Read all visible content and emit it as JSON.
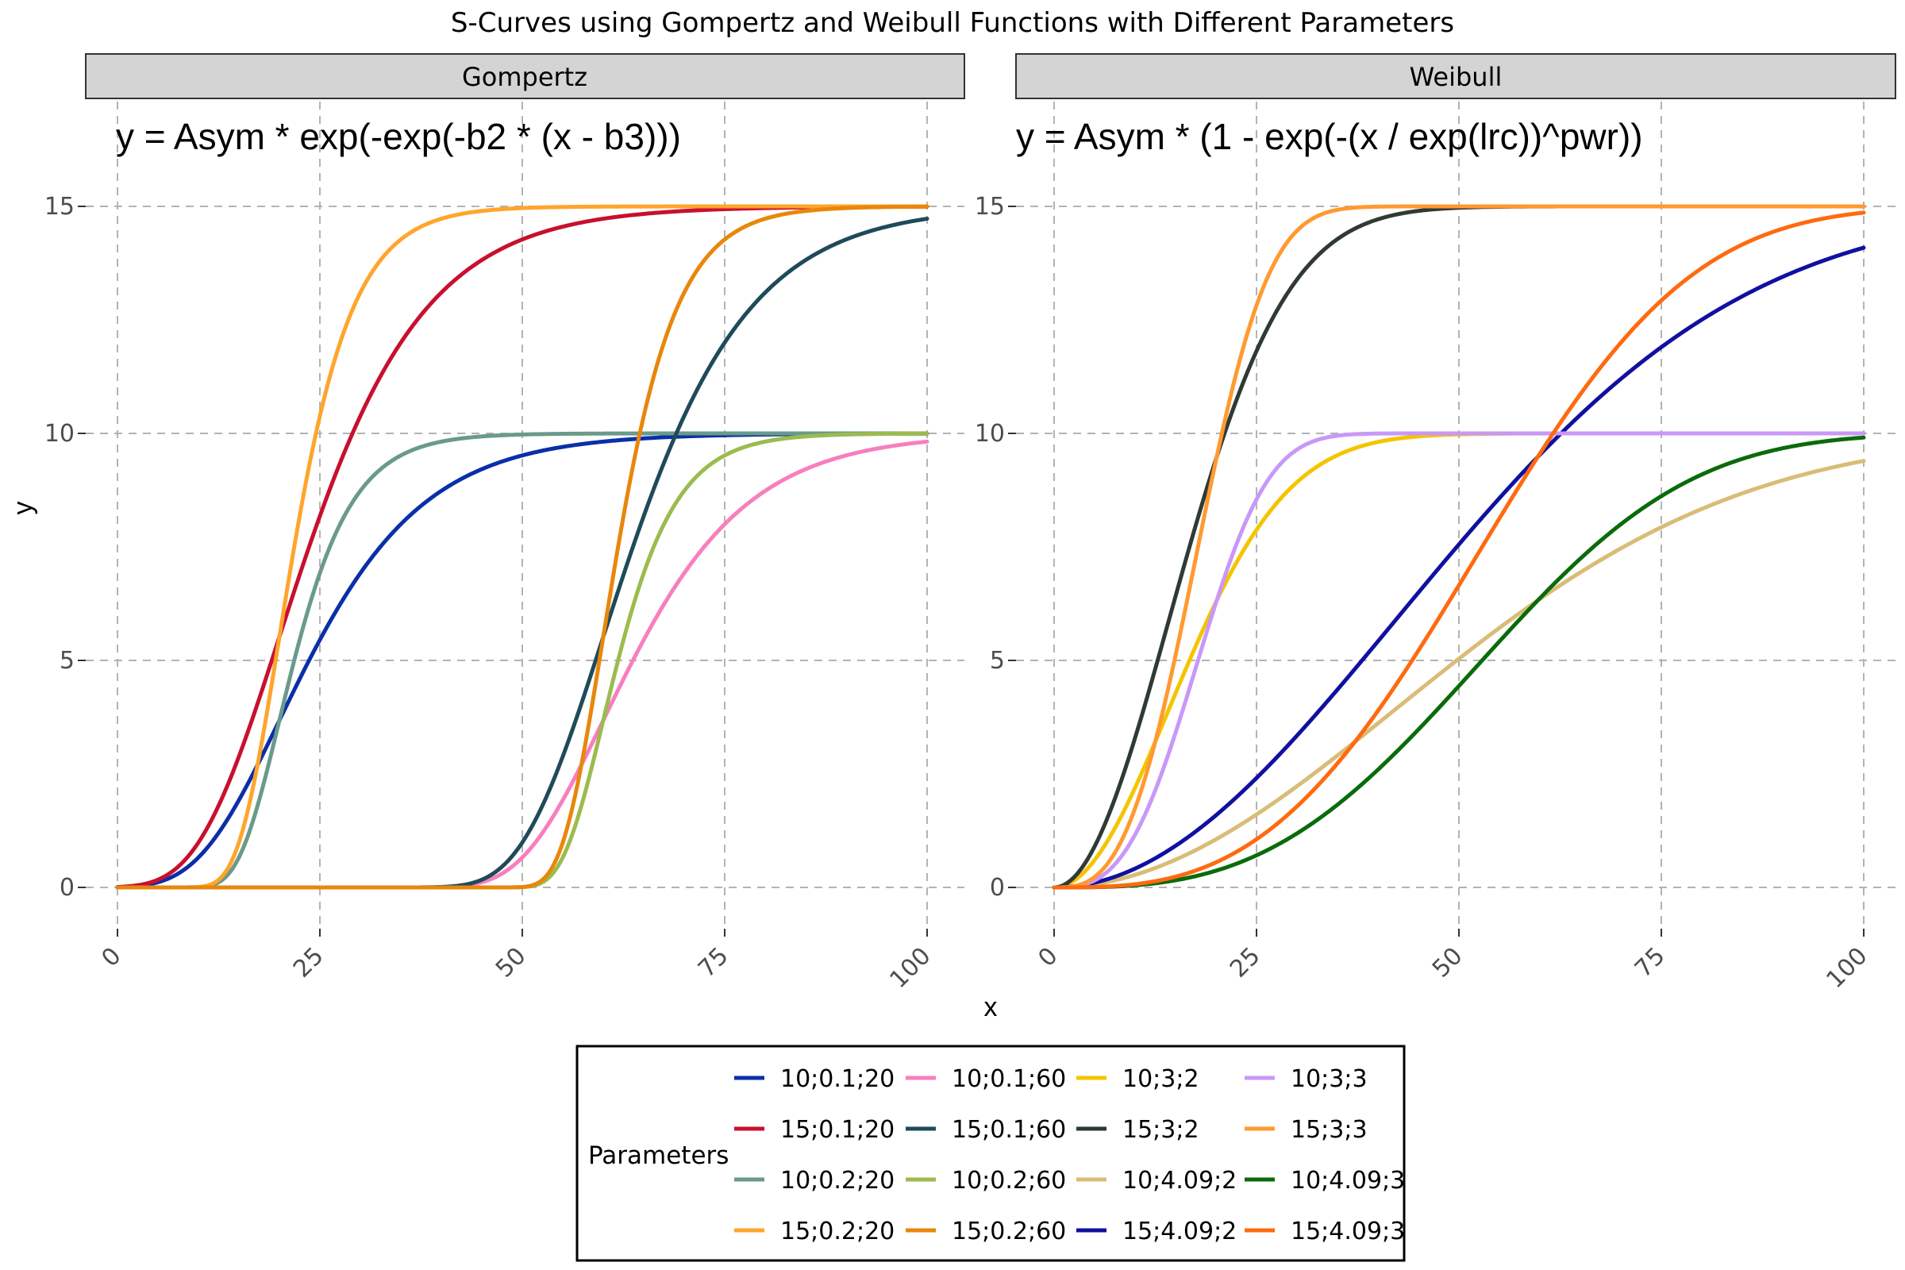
{
  "title": "S-Curves using Gompertz and Weibull Functions with Different Parameters",
  "x_axis_label": "x",
  "y_axis_label": "y",
  "legend": {
    "title": "Parameters",
    "entries": [
      {
        "label": "10;0.1;20",
        "color": "#0a2fa8"
      },
      {
        "label": "15;0.1;20",
        "color": "#c8102e"
      },
      {
        "label": "10;0.2;20",
        "color": "#6a9a8a"
      },
      {
        "label": "15;0.2;20",
        "color": "#ffa52c"
      },
      {
        "label": "10;0.1;60",
        "color": "#f77fbe"
      },
      {
        "label": "15;0.1;60",
        "color": "#1f4a5a"
      },
      {
        "label": "10;0.2;60",
        "color": "#9cbb4e"
      },
      {
        "label": "15;0.2;60",
        "color": "#e8870c"
      },
      {
        "label": "10;3;2",
        "color": "#f5c400"
      },
      {
        "label": "15;3;2",
        "color": "#2f3a35"
      },
      {
        "label": "10;4.09;2",
        "color": "#d9bc76"
      },
      {
        "label": "15;4.09;2",
        "color": "#1010a0"
      },
      {
        "label": "10;3;3",
        "color": "#c898f8"
      },
      {
        "label": "15;3;3",
        "color": "#ff9a30"
      },
      {
        "label": "10;4.09;3",
        "color": "#0a6b0a"
      },
      {
        "label": "15;4.09;3",
        "color": "#ff6a10"
      }
    ]
  },
  "chart_data": [
    {
      "type": "line",
      "panel": "Gompertz",
      "formula": "y = Asym * exp(-exp(-b2 * (x - b3)))",
      "x_ticks": [
        "0",
        "25",
        "50",
        "75",
        "100"
      ],
      "y_ticks": [
        "0",
        "5",
        "10",
        "15"
      ],
      "xlim": [
        0,
        100
      ],
      "ylim": [
        0,
        15
      ],
      "grid": true,
      "function": "gompertz",
      "series": [
        {
          "name": "10;0.1;20",
          "asym": 10,
          "b2": 0.1,
          "b3": 20,
          "color": "#0a2fa8"
        },
        {
          "name": "15;0.1;20",
          "asym": 15,
          "b2": 0.1,
          "b3": 20,
          "color": "#c8102e"
        },
        {
          "name": "10;0.2;20",
          "asym": 10,
          "b2": 0.2,
          "b3": 20,
          "color": "#6a9a8a"
        },
        {
          "name": "15;0.2;20",
          "asym": 15,
          "b2": 0.2,
          "b3": 20,
          "color": "#ffa52c"
        },
        {
          "name": "10;0.1;60",
          "asym": 10,
          "b2": 0.1,
          "b3": 60,
          "color": "#f77fbe"
        },
        {
          "name": "15;0.1;60",
          "asym": 15,
          "b2": 0.1,
          "b3": 60,
          "color": "#1f4a5a"
        },
        {
          "name": "10;0.2;60",
          "asym": 10,
          "b2": 0.2,
          "b3": 60,
          "color": "#9cbb4e"
        },
        {
          "name": "15;0.2;60",
          "asym": 15,
          "b2": 0.2,
          "b3": 60,
          "color": "#e8870c"
        }
      ]
    },
    {
      "type": "line",
      "panel": "Weibull",
      "formula": "y = Asym * (1 - exp(-(x / exp(lrc))^pwr))",
      "x_ticks": [
        "0",
        "25",
        "50",
        "75",
        "100"
      ],
      "y_ticks": [
        "0",
        "5",
        "10",
        "15"
      ],
      "xlim": [
        0,
        100
      ],
      "ylim": [
        0,
        15
      ],
      "grid": true,
      "function": "weibull",
      "series": [
        {
          "name": "10;3;2",
          "asym": 10,
          "lrc": 3,
          "pwr": 2,
          "color": "#f5c400"
        },
        {
          "name": "15;3;2",
          "asym": 15,
          "lrc": 3,
          "pwr": 2,
          "color": "#2f3a35"
        },
        {
          "name": "10;4.09;2",
          "asym": 10,
          "lrc": 4.09,
          "pwr": 2,
          "color": "#d9bc76"
        },
        {
          "name": "15;4.09;2",
          "asym": 15,
          "lrc": 4.09,
          "pwr": 2,
          "color": "#1010a0"
        },
        {
          "name": "10;3;3",
          "asym": 10,
          "lrc": 3,
          "pwr": 3,
          "color": "#c898f8"
        },
        {
          "name": "15;3;3",
          "asym": 15,
          "lrc": 3,
          "pwr": 3,
          "color": "#ff9a30"
        },
        {
          "name": "10;4.09;3",
          "asym": 10,
          "lrc": 4.09,
          "pwr": 3,
          "color": "#0a6b0a"
        },
        {
          "name": "15;4.09;3",
          "asym": 15,
          "lrc": 4.09,
          "pwr": 3,
          "color": "#ff6a10"
        }
      ]
    }
  ]
}
